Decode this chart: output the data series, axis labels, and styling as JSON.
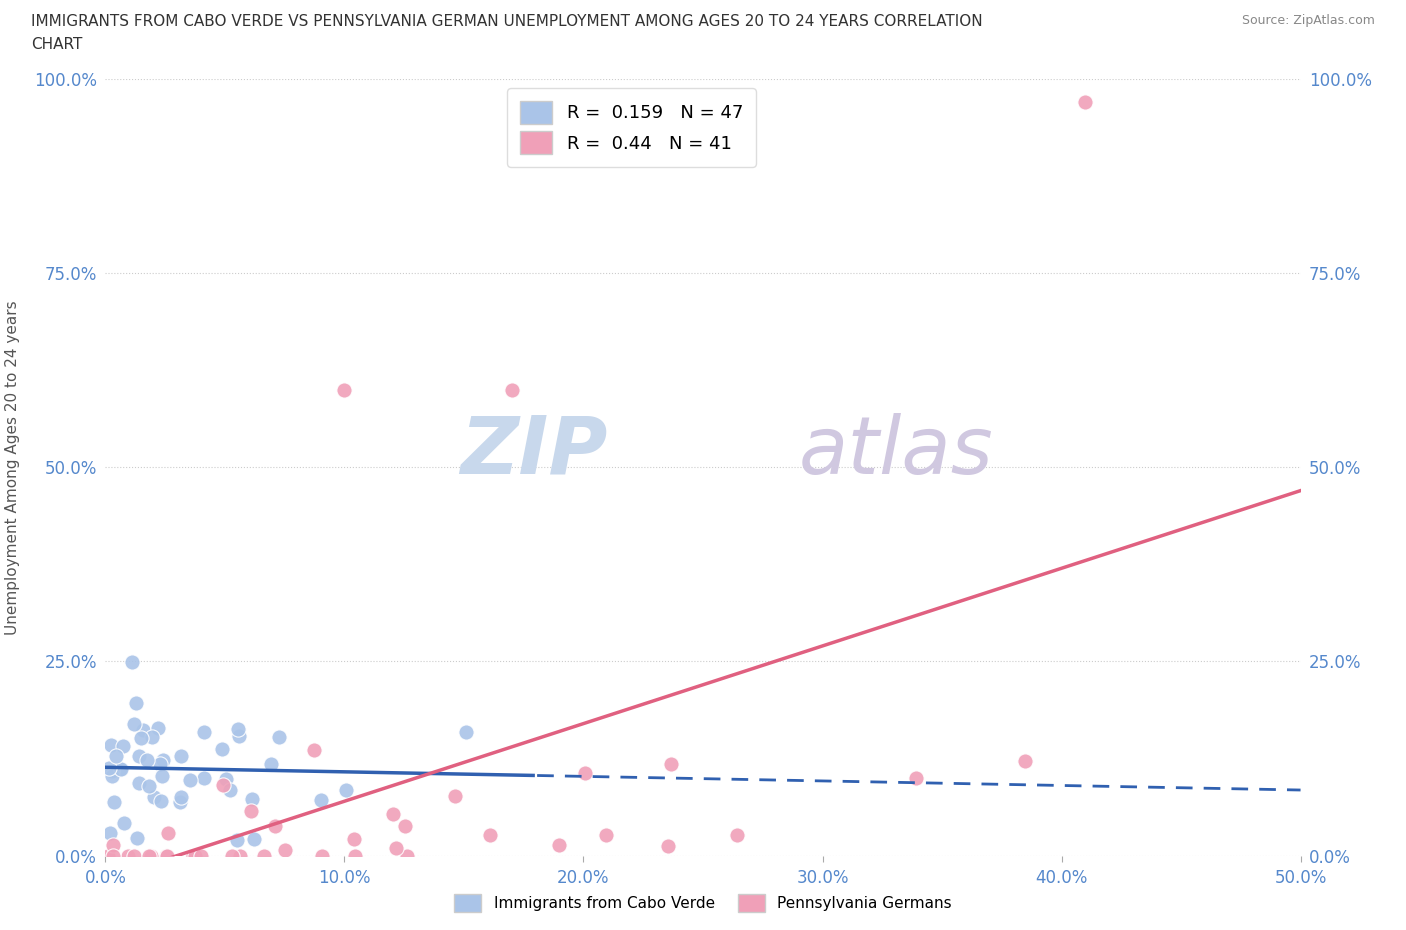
{
  "title_line1": "IMMIGRANTS FROM CABO VERDE VS PENNSYLVANIA GERMAN UNEMPLOYMENT AMONG AGES 20 TO 24 YEARS CORRELATION",
  "title_line2": "CHART",
  "source": "Source: ZipAtlas.com",
  "ylabel_label": "Unemployment Among Ages 20 to 24 years",
  "cabo_verde_R": 0.159,
  "cabo_verde_N": 47,
  "penn_german_R": 0.44,
  "penn_german_N": 41,
  "cabo_verde_color": "#aac4e8",
  "penn_german_color": "#f0a0b8",
  "cabo_verde_line_color": "#3060b0",
  "penn_german_line_color": "#e06080",
  "watermark_zip_color": "#c8d8ec",
  "watermark_atlas_color": "#d0c8e0",
  "background_color": "#ffffff",
  "grid_color": "#cccccc",
  "tick_color": "#5588cc",
  "xlim": [
    0,
    0.5
  ],
  "ylim": [
    0,
    1.0
  ]
}
